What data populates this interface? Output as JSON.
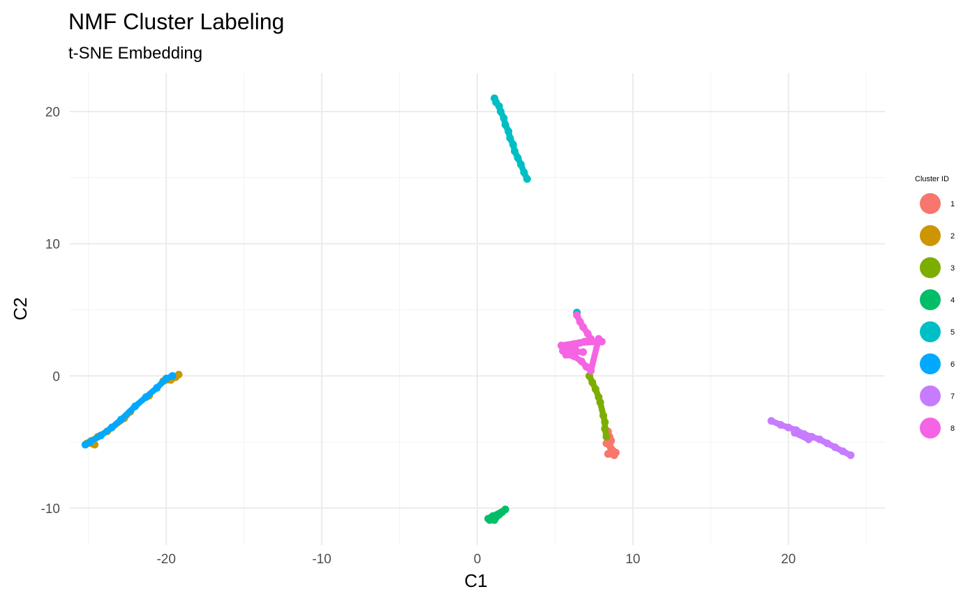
{
  "chart_data": {
    "type": "scatter",
    "title": "NMF Cluster Labeling",
    "subtitle": "t-SNE Embedding",
    "xlabel": "C1",
    "ylabel": "C2",
    "xlim": [
      -26.2,
      26.2
    ],
    "ylim": [
      -12.8,
      22.9
    ],
    "xticks": [
      -20,
      -10,
      0,
      10,
      20
    ],
    "yticks": [
      -10,
      0,
      10,
      20
    ],
    "grid": true,
    "legend": {
      "title": "Cluster ID",
      "position": "right"
    },
    "series": [
      {
        "name": "1",
        "color": "#F8766D",
        "points": [
          [
            8.4,
            -4.2
          ],
          [
            8.5,
            -4.6
          ],
          [
            8.6,
            -4.9
          ],
          [
            8.5,
            -5.2
          ],
          [
            8.6,
            -5.5
          ],
          [
            8.7,
            -5.7
          ],
          [
            8.8,
            -6.0
          ],
          [
            8.4,
            -5.9
          ],
          [
            8.9,
            -5.8
          ],
          [
            8.3,
            -5.1
          ]
        ]
      },
      {
        "name": "2",
        "color": "#CD9600",
        "points": [
          [
            -19.2,
            0.1
          ],
          [
            -19.4,
            -0.1
          ],
          [
            -19.7,
            -0.3
          ],
          [
            -20.2,
            -0.4
          ],
          [
            -22.3,
            -2.7
          ],
          [
            -22.7,
            -3.2
          ],
          [
            -23.8,
            -4.2
          ],
          [
            -24.4,
            -4.6
          ],
          [
            -24.8,
            -4.9
          ],
          [
            -25.1,
            -5.1
          ],
          [
            -24.6,
            -5.2
          ],
          [
            -21.1,
            -1.5
          ]
        ]
      },
      {
        "name": "3",
        "color": "#7CAE00",
        "points": [
          [
            7.2,
            0.0
          ],
          [
            7.4,
            -0.5
          ],
          [
            7.6,
            -1.0
          ],
          [
            7.8,
            -1.6
          ],
          [
            7.9,
            -2.0
          ],
          [
            8.1,
            -3.0
          ],
          [
            8.2,
            -3.5
          ],
          [
            8.2,
            -4.0
          ],
          [
            8.3,
            -4.6
          ]
        ]
      },
      {
        "name": "4",
        "color": "#00BE67",
        "points": [
          [
            0.8,
            -10.9
          ],
          [
            0.9,
            -10.7
          ],
          [
            1.0,
            -10.6
          ],
          [
            1.2,
            -10.7
          ],
          [
            1.4,
            -10.5
          ],
          [
            1.6,
            -10.3
          ],
          [
            1.8,
            -10.1
          ],
          [
            0.7,
            -10.8
          ],
          [
            1.1,
            -10.9
          ]
        ]
      },
      {
        "name": "5",
        "color": "#00BFC4",
        "points": [
          [
            1.1,
            21.0
          ],
          [
            1.2,
            20.7
          ],
          [
            1.4,
            20.4
          ],
          [
            1.5,
            20.0
          ],
          [
            1.7,
            19.5
          ],
          [
            1.8,
            19.0
          ],
          [
            2.0,
            18.5
          ],
          [
            2.1,
            18.0
          ],
          [
            2.3,
            17.5
          ],
          [
            2.4,
            17.0
          ],
          [
            2.6,
            16.5
          ],
          [
            2.8,
            16.0
          ],
          [
            3.0,
            15.4
          ],
          [
            3.2,
            14.9
          ],
          [
            6.4,
            4.8
          ]
        ]
      },
      {
        "name": "6",
        "color": "#00A9FF",
        "points": [
          [
            -25.2,
            -5.2
          ],
          [
            -24.9,
            -5.0
          ],
          [
            -24.2,
            -4.5
          ],
          [
            -23.5,
            -3.9
          ],
          [
            -22.9,
            -3.3
          ],
          [
            -22.0,
            -2.3
          ],
          [
            -21.3,
            -1.6
          ],
          [
            -20.6,
            -0.9
          ],
          [
            -20.0,
            -0.2
          ],
          [
            -19.6,
            0.0
          ]
        ]
      },
      {
        "name": "7",
        "color": "#C77CFF",
        "points": [
          [
            18.9,
            -3.4
          ],
          [
            19.5,
            -3.7
          ],
          [
            20.0,
            -3.9
          ],
          [
            20.5,
            -4.1
          ],
          [
            21.0,
            -4.4
          ],
          [
            21.5,
            -4.6
          ],
          [
            22.0,
            -4.8
          ],
          [
            22.5,
            -5.1
          ],
          [
            23.0,
            -5.4
          ],
          [
            23.5,
            -5.7
          ],
          [
            24.0,
            -6.0
          ],
          [
            21.3,
            -4.8
          ],
          [
            20.4,
            -4.3
          ]
        ]
      },
      {
        "name": "8",
        "color": "#F564E3",
        "points": [
          [
            6.4,
            4.6
          ],
          [
            6.6,
            4.1
          ],
          [
            6.8,
            3.7
          ],
          [
            7.1,
            3.2
          ],
          [
            7.3,
            2.8
          ],
          [
            6.9,
            2.6
          ],
          [
            5.4,
            2.3
          ],
          [
            5.9,
            2.2
          ],
          [
            6.3,
            2.0
          ],
          [
            5.7,
            1.6
          ],
          [
            6.2,
            1.5
          ],
          [
            6.7,
            1.1
          ],
          [
            7.0,
            0.7
          ],
          [
            7.3,
            0.4
          ],
          [
            7.8,
            2.8
          ],
          [
            8.0,
            2.6
          ],
          [
            6.6,
            2.5
          ],
          [
            5.5,
            1.9
          ],
          [
            6.8,
            1.8
          ]
        ]
      }
    ]
  }
}
